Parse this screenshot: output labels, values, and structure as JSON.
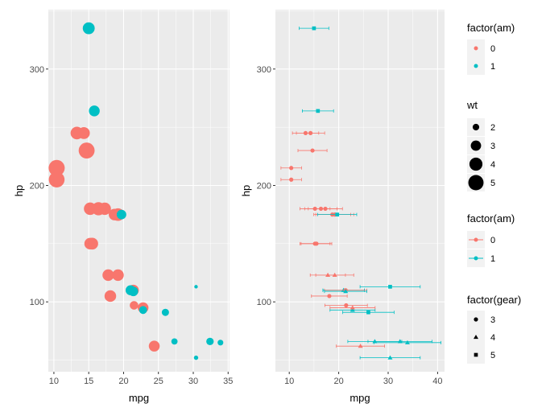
{
  "chart_data": [
    {
      "type": "scatter",
      "xlabel": "mpg",
      "ylabel": "hp",
      "xlim": [
        9.2,
        35.2
      ],
      "ylim": [
        40,
        351
      ],
      "xticks": [
        10,
        15,
        20,
        25,
        30,
        35
      ],
      "yticks": [
        100,
        200,
        300
      ],
      "grid": true,
      "color_by": "factor(am)",
      "size_by": "wt"
    },
    {
      "type": "scatter",
      "xlabel": "mpg",
      "ylabel": "hp",
      "xlim": [
        7.2,
        41.4
      ],
      "ylim": [
        40,
        351
      ],
      "xticks": [
        10,
        20,
        30,
        40
      ],
      "yticks": [
        100,
        200,
        300
      ],
      "grid": true,
      "color_by": "factor(am)",
      "shape_by": "factor(gear)",
      "horizontal_error_bars": true
    }
  ],
  "columns": [
    "mpg",
    "hp",
    "wt",
    "am",
    "gear"
  ],
  "points": [
    [
      21.0,
      110,
      2.62,
      1,
      4
    ],
    [
      21.0,
      110,
      2.875,
      1,
      4
    ],
    [
      22.8,
      93,
      2.32,
      1,
      4
    ],
    [
      21.4,
      110,
      3.215,
      0,
      3
    ],
    [
      18.7,
      175,
      3.44,
      0,
      3
    ],
    [
      18.1,
      105,
      3.46,
      0,
      3
    ],
    [
      14.3,
      245,
      3.57,
      0,
      3
    ],
    [
      24.4,
      62,
      3.19,
      0,
      4
    ],
    [
      22.8,
      95,
      3.15,
      0,
      4
    ],
    [
      19.2,
      123,
      3.44,
      0,
      4
    ],
    [
      17.8,
      123,
      3.44,
      0,
      4
    ],
    [
      16.4,
      180,
      4.07,
      0,
      3
    ],
    [
      17.3,
      180,
      3.73,
      0,
      3
    ],
    [
      15.2,
      180,
      3.78,
      0,
      3
    ],
    [
      10.4,
      205,
      5.25,
      0,
      3
    ],
    [
      10.4,
      215,
      5.424,
      0,
      3
    ],
    [
      14.7,
      230,
      5.345,
      0,
      3
    ],
    [
      32.4,
      66,
      2.2,
      1,
      4
    ],
    [
      30.4,
      52,
      1.615,
      1,
      4
    ],
    [
      33.9,
      65,
      1.835,
      1,
      4
    ],
    [
      21.5,
      97,
      2.465,
      0,
      3
    ],
    [
      15.5,
      150,
      3.52,
      0,
      3
    ],
    [
      15.2,
      150,
      3.435,
      0,
      3
    ],
    [
      13.3,
      245,
      3.84,
      0,
      3
    ],
    [
      19.2,
      175,
      3.845,
      0,
      3
    ],
    [
      27.3,
      66,
      1.935,
      1,
      4
    ],
    [
      26.0,
      91,
      2.14,
      1,
      5
    ],
    [
      30.4,
      113,
      1.513,
      1,
      5
    ],
    [
      15.8,
      264,
      3.17,
      1,
      5
    ],
    [
      19.7,
      175,
      2.77,
      1,
      5
    ],
    [
      15.0,
      335,
      3.57,
      1,
      5
    ],
    [
      21.4,
      109,
      2.78,
      1,
      4
    ]
  ],
  "colors": {
    "0": "#F8766D",
    "1": "#00BFC4",
    "panel": "#EBEBEB",
    "grid": "#FFFFFF",
    "legend_key": "#F2F2F2"
  },
  "legends": {
    "am_color": {
      "title": "factor(am)",
      "labels": [
        "0",
        "1"
      ]
    },
    "wt_size": {
      "title": "wt",
      "labels": [
        "2",
        "3",
        "4",
        "5"
      ]
    },
    "am_line": {
      "title": "factor(am)",
      "labels": [
        "0",
        "1"
      ]
    },
    "gear_shape": {
      "title": "factor(gear)",
      "labels": [
        "3",
        "4",
        "5"
      ],
      "shapes": [
        "circle",
        "triangle",
        "square"
      ]
    }
  }
}
